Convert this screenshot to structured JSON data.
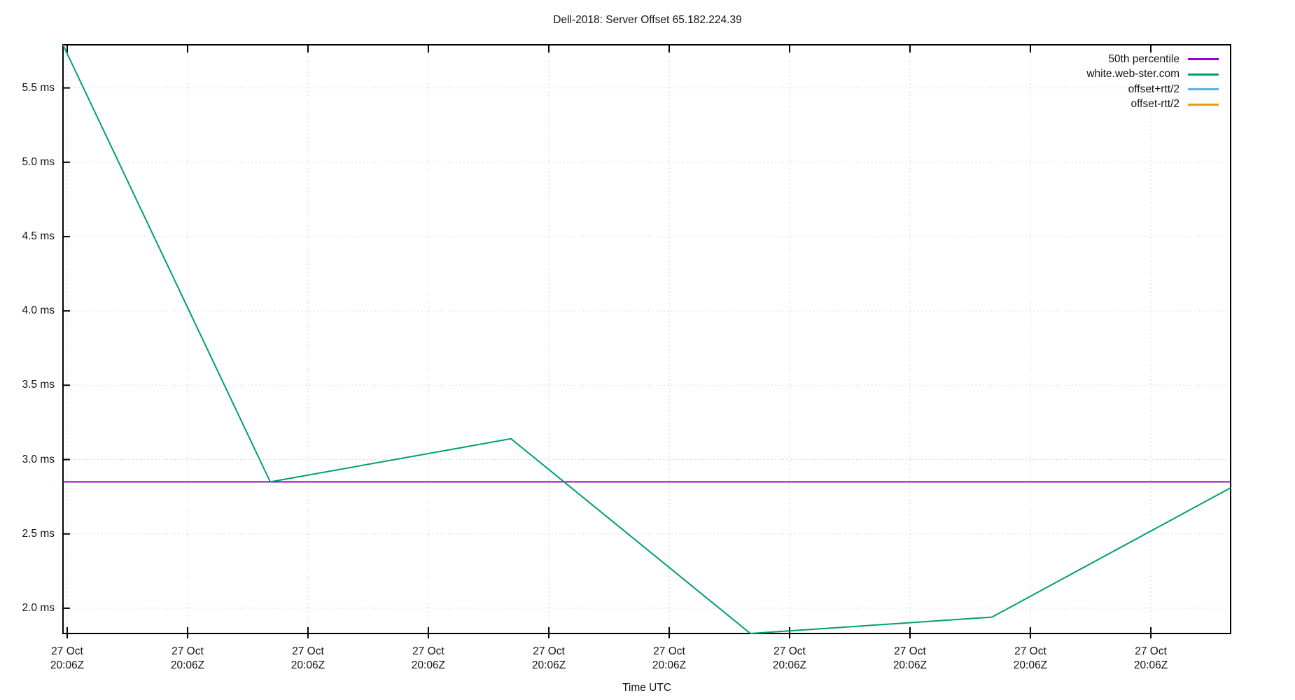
{
  "title": "Dell-2018: Server Offset 65.182.224.39",
  "x_axis_title": "Time UTC",
  "legend": [
    {
      "label": "50th percentile",
      "color": "#9400d3"
    },
    {
      "label": "white.web-ster.com",
      "color": "#009e73"
    },
    {
      "label": "offset+rtt/2",
      "color": "#56b4e9"
    },
    {
      "label": "offset-rtt/2",
      "color": "#e69f00"
    }
  ],
  "colors": {
    "frame": "#000000",
    "grid": "#c9c9c9",
    "text": "#141414",
    "percentile_line": "#9400d3",
    "offset_line": "#009e73"
  },
  "chart_data": {
    "type": "line",
    "title": "Dell-2018: Server Offset 65.182.224.39",
    "xlabel": "Time UTC",
    "ylabel": "",
    "y_unit": "ms",
    "ylim": [
      1.83,
      5.79
    ],
    "grid": true,
    "legend_position": "top-right-inside",
    "y_ticks": [
      {
        "value": 2.0,
        "label": "2.0 ms"
      },
      {
        "value": 2.5,
        "label": "2.5 ms"
      },
      {
        "value": 3.0,
        "label": "3.0 ms"
      },
      {
        "value": 3.5,
        "label": "3.5 ms"
      },
      {
        "value": 4.0,
        "label": "4.0 ms"
      },
      {
        "value": 4.5,
        "label": "4.5 ms"
      },
      {
        "value": 5.0,
        "label": "5.0 ms"
      },
      {
        "value": 5.5,
        "label": "5.5 ms"
      }
    ],
    "x_ticks": [
      {
        "frac": 0.0036,
        "lines": [
          "27 Oct",
          "20:06Z"
        ]
      },
      {
        "frac": 0.1067,
        "lines": [
          "27 Oct",
          "20:06Z"
        ]
      },
      {
        "frac": 0.2098,
        "lines": [
          "27 Oct",
          "20:06Z"
        ]
      },
      {
        "frac": 0.3129,
        "lines": [
          "27 Oct",
          "20:06Z"
        ]
      },
      {
        "frac": 0.4161,
        "lines": [
          "27 Oct",
          "20:06Z"
        ]
      },
      {
        "frac": 0.5192,
        "lines": [
          "27 Oct",
          "20:06Z"
        ]
      },
      {
        "frac": 0.6223,
        "lines": [
          "27 Oct",
          "20:06Z"
        ]
      },
      {
        "frac": 0.7254,
        "lines": [
          "27 Oct",
          "20:06Z"
        ]
      },
      {
        "frac": 0.8285,
        "lines": [
          "27 Oct",
          "20:06Z"
        ]
      },
      {
        "frac": 0.9317,
        "lines": [
          "27 Oct",
          "20:06Z"
        ]
      }
    ],
    "series": [
      {
        "name": "50th percentile",
        "color": "#9400d3",
        "x_frac": [
          0.0,
          1.0
        ],
        "values": [
          2.85,
          2.85
        ]
      },
      {
        "name": "white.web-ster.com",
        "color": "#009e73",
        "x_frac": [
          0.0,
          0.1775,
          0.3837,
          0.5887,
          0.7956,
          1.0
        ],
        "values": [
          5.79,
          2.85,
          3.14,
          1.83,
          1.94,
          2.81
        ]
      }
    ]
  }
}
